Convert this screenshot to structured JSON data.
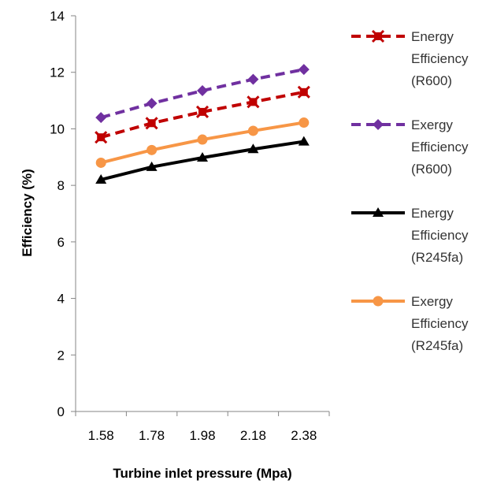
{
  "chart_data": {
    "type": "line",
    "xlabel": "Turbine inlet pressure (Mpa)",
    "ylabel": "Efficiency (%)",
    "categories": [
      "1.58",
      "1.78",
      "1.98",
      "2.18",
      "2.38"
    ],
    "ylim": [
      0,
      14
    ],
    "yticks": [
      0,
      2,
      4,
      6,
      8,
      10,
      12,
      14
    ],
    "grid": false,
    "legend_position": "right",
    "series": [
      {
        "name": [
          "Energy",
          "Efficiency",
          "(R600)"
        ],
        "values": [
          9.7,
          10.2,
          10.6,
          10.95,
          11.3
        ],
        "color": "#c00000",
        "dash": "dashed",
        "marker": "x-square"
      },
      {
        "name": [
          "Exergy",
          "Efficiency",
          "(R600)"
        ],
        "values": [
          10.4,
          10.9,
          11.35,
          11.75,
          12.1
        ],
        "color": "#7030a0",
        "dash": "dashed",
        "marker": "diamond"
      },
      {
        "name": [
          "Energy",
          "Efficiency",
          "(R245fa)"
        ],
        "values": [
          8.2,
          8.65,
          8.98,
          9.28,
          9.55
        ],
        "color": "#000000",
        "dash": "solid",
        "marker": "triangle"
      },
      {
        "name": [
          "Exergy",
          "Efficiency",
          "(R245fa)"
        ],
        "values": [
          8.8,
          9.25,
          9.62,
          9.93,
          10.22
        ],
        "color": "#f79646",
        "dash": "solid",
        "marker": "circle"
      }
    ]
  }
}
